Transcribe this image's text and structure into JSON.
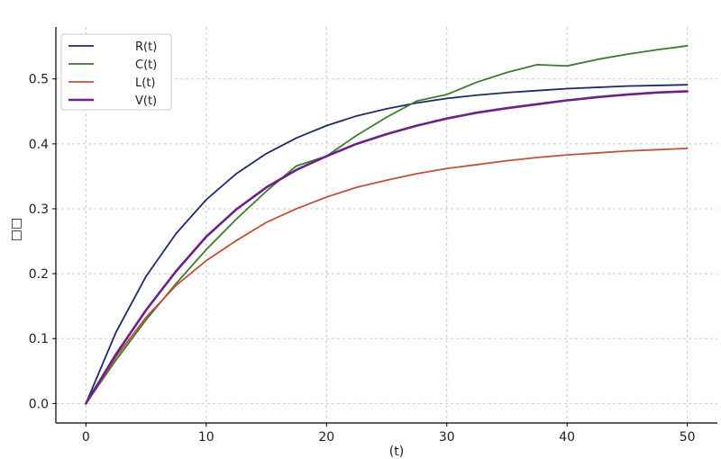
{
  "chart_data": {
    "type": "line",
    "title": "",
    "xlabel": "(t)",
    "ylabel": "□□",
    "xlim": [
      -2.5,
      52.5
    ],
    "ylim": [
      -0.03,
      0.58
    ],
    "xticks": [
      0,
      10,
      20,
      30,
      40,
      50
    ],
    "yticks": [
      0.0,
      0.1,
      0.2,
      0.3,
      0.4,
      0.5
    ],
    "grid": true,
    "legend_position": "top-left",
    "x": [
      0,
      2.5,
      5,
      7.5,
      10,
      12.5,
      15,
      17.5,
      20,
      22.5,
      25,
      27.5,
      30,
      32.5,
      35,
      37.5,
      40,
      42.5,
      45,
      47.5,
      50
    ],
    "series": [
      {
        "name": "R(t)",
        "color": "#1f2a6b",
        "values": [
          0.0,
          0.11,
          0.196,
          0.262,
          0.314,
          0.354,
          0.385,
          0.409,
          0.428,
          0.443,
          0.454,
          0.463,
          0.47,
          0.475,
          0.479,
          0.482,
          0.485,
          0.487,
          0.489,
          0.49,
          0.491
        ]
      },
      {
        "name": "C(t)",
        "color": "#3e7a2e",
        "values": [
          0.0,
          0.067,
          0.129,
          0.185,
          0.237,
          0.284,
          0.327,
          0.366,
          0.381,
          0.413,
          0.441,
          0.466,
          0.476,
          0.495,
          0.51,
          0.522,
          0.52,
          0.53,
          0.538,
          0.545,
          0.551
        ]
      },
      {
        "name": "L(t)",
        "color": "#c0523a",
        "values": [
          0.0,
          0.072,
          0.133,
          0.182,
          0.22,
          0.251,
          0.279,
          0.3,
          0.318,
          0.333,
          0.344,
          0.354,
          0.362,
          0.368,
          0.374,
          0.379,
          0.383,
          0.386,
          0.389,
          0.391,
          0.393
        ]
      },
      {
        "name": "V(t)",
        "color": "#6b2287",
        "values": [
          0.0,
          0.076,
          0.144,
          0.204,
          0.257,
          0.299,
          0.333,
          0.36,
          0.381,
          0.4,
          0.415,
          0.428,
          0.439,
          0.448,
          0.455,
          0.461,
          0.467,
          0.472,
          0.476,
          0.479,
          0.481
        ]
      }
    ]
  }
}
